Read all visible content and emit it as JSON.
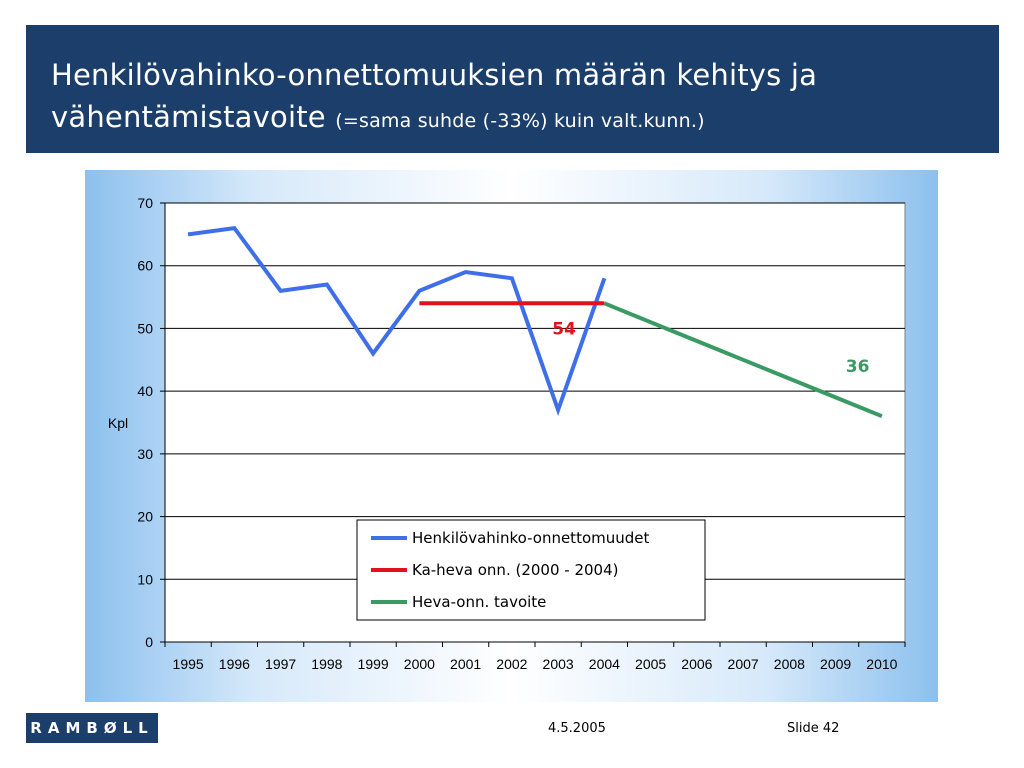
{
  "title": {
    "line1": "Henkilövahinko-onnettomuuksien määrän kehitys ja",
    "line2_main": "vähentämistavoite",
    "line2_sub": "(=sama suhde (-33%) kuin valt.kunn.)"
  },
  "footer": {
    "logo": "RAMBØLL",
    "date": "4.5.2005",
    "slide": "Slide 42"
  },
  "colors": {
    "title_bar": "#1b3e6a",
    "series_accidents": "#3f6fe8",
    "series_average": "#e3111b",
    "series_target": "#3a9a64"
  },
  "chart_data": {
    "type": "line",
    "categories": [
      "1995",
      "1996",
      "1997",
      "1998",
      "1999",
      "2000",
      "2001",
      "2002",
      "2003",
      "2004",
      "2005",
      "2006",
      "2007",
      "2008",
      "2009",
      "2010"
    ],
    "ylabel": "Kpl",
    "xlabel": "",
    "ylim": [
      0,
      70
    ],
    "yticks": [
      0,
      10,
      20,
      30,
      40,
      50,
      60,
      70
    ],
    "grid": true,
    "legend_position": "bottom-center",
    "series": [
      {
        "name": "Henkilövahinko-onnettomuudet",
        "color": "#3f6fe8",
        "x": [
          "1995",
          "1996",
          "1997",
          "1998",
          "1999",
          "2000",
          "2001",
          "2002",
          "2003",
          "2004"
        ],
        "values": [
          65,
          66,
          56,
          57,
          46,
          56,
          59,
          58,
          37,
          58
        ]
      },
      {
        "name": "Ka-heva onn. (2000 - 2004)",
        "color": "#e3111b",
        "x": [
          "2000",
          "2004"
        ],
        "values": [
          54,
          54
        ]
      },
      {
        "name": "Heva-onn. tavoite",
        "color": "#3a9a64",
        "x": [
          "2004",
          "2005",
          "2006",
          "2007",
          "2008",
          "2009",
          "2010"
        ],
        "values": [
          54,
          51,
          48,
          45,
          42,
          39,
          36
        ]
      }
    ],
    "annotations": [
      {
        "text": "54",
        "color": "#e3111b",
        "near_x": "2003",
        "near_y": 50
      },
      {
        "text": "36",
        "color": "#3a9a64",
        "near_x": "2009",
        "near_y": 44
      }
    ]
  }
}
